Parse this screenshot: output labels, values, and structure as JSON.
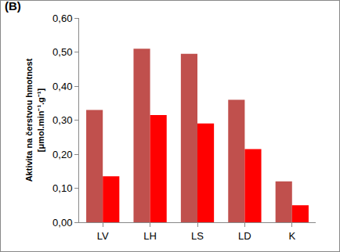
{
  "chart_data": {
    "type": "bar",
    "annotations": [
      "(B)"
    ],
    "y_label": "Aktivita na čerstvou hmotnost\n[μmol.min⁻¹.g⁻¹]",
    "categories": [
      "LV",
      "LH",
      "LS",
      "LD",
      "K"
    ],
    "series": [
      {
        "color": "#c0504d",
        "values": [
          0.33,
          0.51,
          0.495,
          0.36,
          0.12
        ]
      },
      {
        "color": "#ff0000",
        "values": [
          0.135,
          0.315,
          0.29,
          0.215,
          0.05
        ]
      }
    ],
    "ylim": [
      0,
      0.6
    ],
    "yticks": [
      {
        "value": 0,
        "label": "0,00"
      },
      {
        "value": 0.1,
        "label": "0,10"
      },
      {
        "value": 0.2,
        "label": "0,20"
      },
      {
        "value": 0.3,
        "label": "0,30"
      },
      {
        "value": 0.4,
        "label": "0,40"
      },
      {
        "value": 0.5,
        "label": "0,50"
      },
      {
        "value": 0.6,
        "label": "0,60"
      }
    ],
    "grid": false
  }
}
